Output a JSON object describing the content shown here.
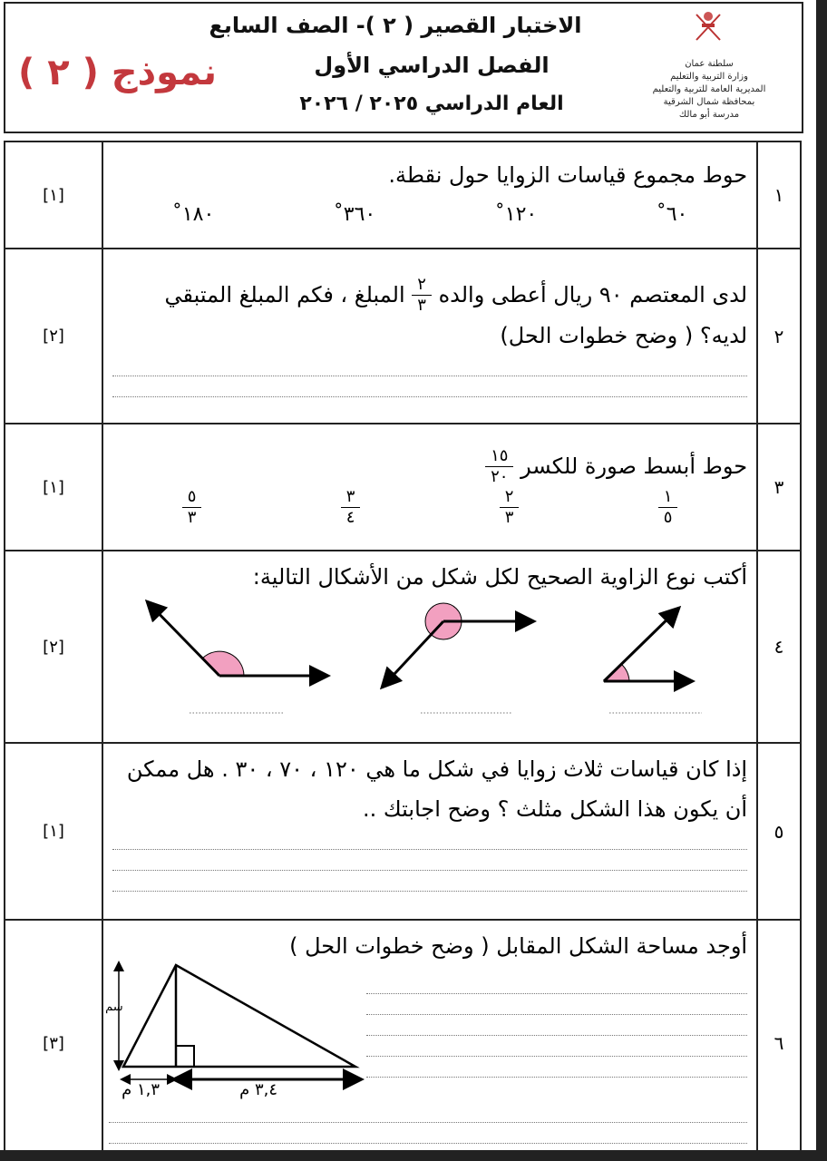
{
  "header": {
    "line1": "الاختبار القصير ( ٢ )- الصف السابع",
    "line2": "الفصل الدراسي الأول",
    "line3": "العام الدراسي ٢٠٢٥ / ٢٠٢٦",
    "model": "نموذج ( ٢ )",
    "ministry": [
      "سلطنة عمان",
      "وزارة التربية والتعليم",
      "المديرية العامة للتربية والتعليم",
      "بمحافظة شمال الشرقية",
      "مدرسة أبو مالك"
    ]
  },
  "questions": [
    {
      "num": "١",
      "mark": "[١]",
      "text": "حوط مجموع قياسات الزوايا حول نقطة.",
      "choices": [
        "٦٠˚",
        "١٢٠˚",
        "٣٦٠˚",
        "١٨٠˚"
      ]
    },
    {
      "num": "٢",
      "mark": "[٢]",
      "text_a": "لدى المعتصم ٩٠ ريال أعطى والده",
      "frac": [
        "٢",
        "٣"
      ],
      "text_b": "المبلغ ، فكم المبلغ المتبقي لديه؟ ( وضح خطوات الحل)"
    },
    {
      "num": "٣",
      "mark": "[١]",
      "text": "حوط أبسط صورة للكسر",
      "frac": [
        "١٥",
        "٢٠"
      ],
      "choices": [
        [
          "١",
          "٥"
        ],
        [
          "٢",
          "٣"
        ],
        [
          "٣",
          "٤"
        ],
        [
          "٥",
          "٣"
        ]
      ]
    },
    {
      "num": "٤",
      "mark": "[٢]",
      "text": "أكتب نوع الزاوية الصحيح لكل شكل من الأشكال التالية:"
    },
    {
      "num": "٥",
      "mark": "[١]",
      "text": "إذا كان قياسات ثلاث زوايا في شكل ما هي ١٢٠ ، ٧٠ ، ٣٠ . هل ممكن أن يكون هذا الشكل مثلث ؟ وضح اجابتك .."
    },
    {
      "num": "٦",
      "mark": "[٣]",
      "text": "أوجد مساحة الشكل المقابل ( وضح خطوات الحل )",
      "labels": {
        "left": "١,٣ م",
        "right": "٣,٤ م",
        "height": "سم"
      }
    }
  ],
  "colors": {
    "model": "#c3383d",
    "angle_fill": "#f2a0c0"
  }
}
